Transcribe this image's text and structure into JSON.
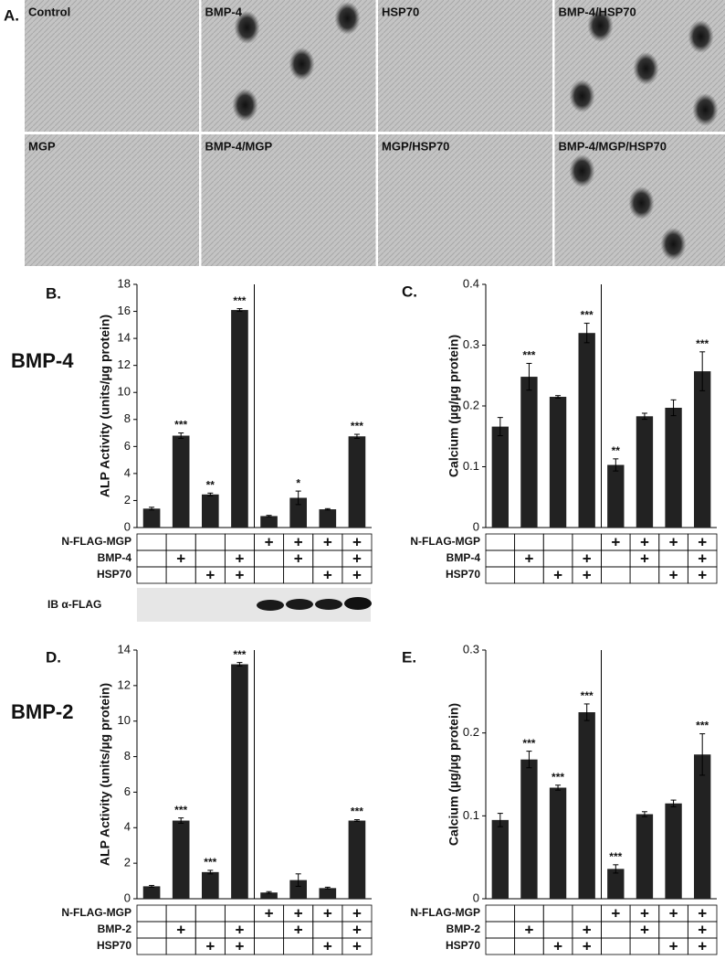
{
  "figure": {
    "panel_labels": [
      "A.",
      "B.",
      "C.",
      "D.",
      "E."
    ],
    "row_labels": [
      "BMP-4",
      "BMP-2"
    ]
  },
  "micrographs": [
    "Control",
    "BMP-4",
    "HSP70",
    "BMP-4/HSP70",
    "MGP",
    "BMP-4/MGP",
    "MGP/HSP70",
    "BMP-4/MGP/HSP70"
  ],
  "blot": {
    "label": "IB α-FLAG"
  },
  "chart_data": [
    {
      "type": "bar",
      "ylabel": "ALP Activity (units/µg protein)",
      "ylim": [
        0,
        18
      ],
      "yticks": [
        0,
        2,
        4,
        6,
        8,
        10,
        12,
        14,
        16,
        18
      ],
      "values": [
        1.4,
        6.8,
        2.45,
        16.1,
        0.85,
        2.2,
        1.35,
        6.75
      ],
      "errors": [
        0.1,
        0.2,
        0.1,
        0.1,
        0.05,
        0.5,
        0.05,
        0.15
      ],
      "annotations": [
        null,
        "***",
        "**",
        "***",
        null,
        "*",
        null,
        "***"
      ],
      "color": "#222222",
      "treatments": [
        {
          "name": "N-FLAG-MGP",
          "cells": [
            null,
            null,
            null,
            null,
            "+",
            "+",
            "+",
            "+"
          ]
        },
        {
          "name": "BMP-4",
          "cells": [
            null,
            "+",
            null,
            "+",
            null,
            "+",
            null,
            "+"
          ]
        },
        {
          "name": "HSP70",
          "cells": [
            null,
            null,
            "+",
            "+",
            null,
            null,
            "+",
            "+"
          ]
        }
      ]
    },
    {
      "type": "bar",
      "ylabel": "Calcium (µg/µg protein)",
      "ylim": [
        0,
        0.4
      ],
      "yticks": [
        0,
        0.1,
        0.2,
        0.3,
        0.4
      ],
      "values": [
        0.166,
        0.248,
        0.215,
        0.32,
        0.103,
        0.183,
        0.197,
        0.257
      ],
      "errors": [
        0.015,
        0.022,
        0.002,
        0.016,
        0.01,
        0.005,
        0.013,
        0.032
      ],
      "annotations": [
        null,
        "***",
        null,
        "***",
        "**",
        null,
        null,
        "***"
      ],
      "color": "#222222",
      "treatments": [
        {
          "name": "N-FLAG-MGP",
          "cells": [
            null,
            null,
            null,
            null,
            "+",
            "+",
            "+",
            "+"
          ]
        },
        {
          "name": "BMP-4",
          "cells": [
            null,
            "+",
            null,
            "+",
            null,
            "+",
            null,
            "+"
          ]
        },
        {
          "name": "HSP70",
          "cells": [
            null,
            null,
            "+",
            "+",
            null,
            null,
            "+",
            "+"
          ]
        }
      ]
    },
    {
      "type": "bar",
      "ylabel": "ALP Activity (units/µg protein)",
      "ylim": [
        0,
        14
      ],
      "yticks": [
        0,
        2,
        4,
        6,
        8,
        10,
        12,
        14
      ],
      "values": [
        0.7,
        4.4,
        1.5,
        13.2,
        0.35,
        1.05,
        0.6,
        4.4
      ],
      "errors": [
        0.05,
        0.15,
        0.1,
        0.1,
        0.05,
        0.35,
        0.05,
        0.05
      ],
      "annotations": [
        null,
        "***",
        "***",
        "***",
        null,
        null,
        null,
        "***"
      ],
      "color": "#222222",
      "treatments": [
        {
          "name": "N-FLAG-MGP",
          "cells": [
            null,
            null,
            null,
            null,
            "+",
            "+",
            "+",
            "+"
          ]
        },
        {
          "name": "BMP-2",
          "cells": [
            null,
            "+",
            null,
            "+",
            null,
            "+",
            null,
            "+"
          ]
        },
        {
          "name": "HSP70",
          "cells": [
            null,
            null,
            "+",
            "+",
            null,
            null,
            "+",
            "+"
          ]
        }
      ]
    },
    {
      "type": "bar",
      "ylabel": "Calcium (µg/µg protein)",
      "ylim": [
        0,
        0.3
      ],
      "yticks": [
        0,
        0.1,
        0.2,
        0.3
      ],
      "values": [
        0.095,
        0.168,
        0.134,
        0.225,
        0.036,
        0.102,
        0.115,
        0.174
      ],
      "errors": [
        0.008,
        0.01,
        0.003,
        0.01,
        0.005,
        0.003,
        0.004,
        0.025
      ],
      "annotations": [
        null,
        "***",
        "***",
        "***",
        "***",
        null,
        null,
        "***"
      ],
      "color": "#222222",
      "treatments": [
        {
          "name": "N-FLAG-MGP",
          "cells": [
            null,
            null,
            null,
            null,
            "+",
            "+",
            "+",
            "+"
          ]
        },
        {
          "name": "BMP-2",
          "cells": [
            null,
            "+",
            null,
            "+",
            null,
            "+",
            null,
            "+"
          ]
        },
        {
          "name": "HSP70",
          "cells": [
            null,
            null,
            "+",
            "+",
            null,
            null,
            "+",
            "+"
          ]
        }
      ]
    }
  ]
}
